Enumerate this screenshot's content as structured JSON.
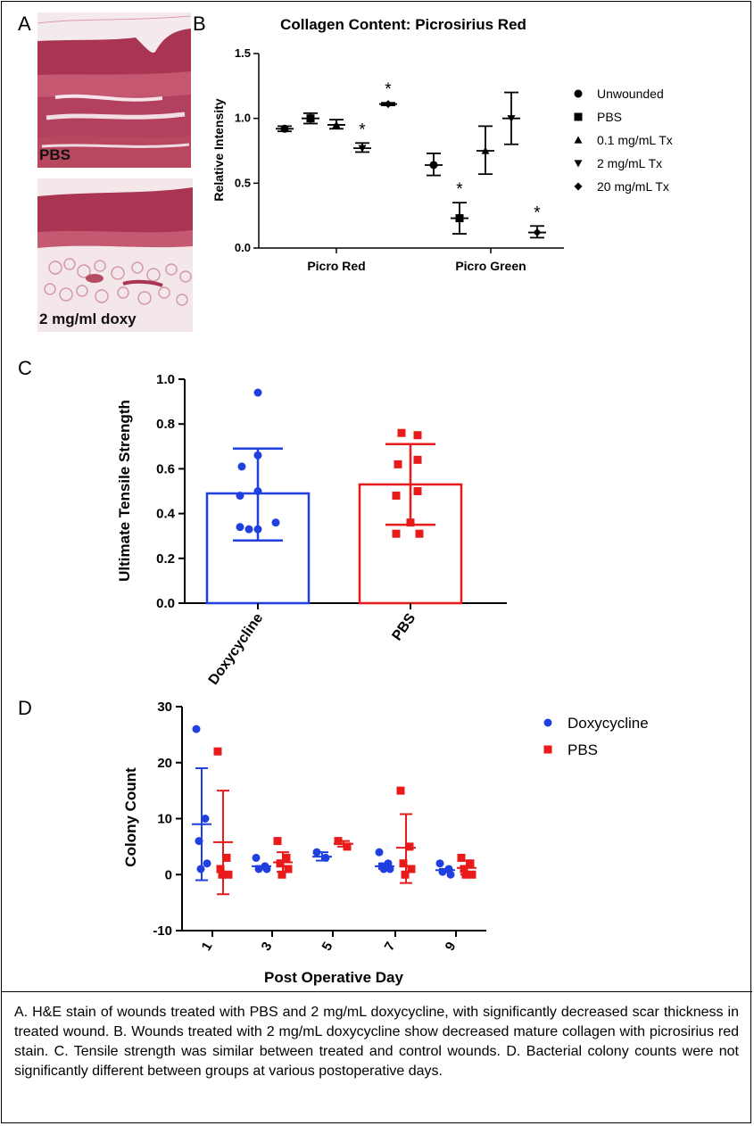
{
  "panels": {
    "a": {
      "letter": "A",
      "images": [
        {
          "label": "PBS"
        },
        {
          "label": "2 mg/ml doxy"
        }
      ]
    },
    "b_letter": "B",
    "c_letter": "C",
    "d_letter": "D"
  },
  "caption": "A. H&E stain of wounds treated with PBS and 2 mg/mL doxycycline, with significantly decreased scar thickness in treated wound. B. Wounds treated with 2 mg/mL doxycycline show decreased mature collagen with picrosirius red stain. C. Tensile strength was similar between treated and control wounds. D. Bacterial colony counts were not significantly different between groups at various postoperative days.",
  "colors": {
    "blue": "#1f3fe0",
    "red": "#e81a1a",
    "tissue_pink": "#e8b8c4",
    "tissue_dark": "#9c2f4a"
  },
  "chart_data": [
    {
      "id": "B",
      "type": "scatter",
      "title": "Collagen Content: Picrosirius Red",
      "ylabel": "Relative Intensity",
      "xlabel": "",
      "ylim": [
        0,
        1.5
      ],
      "yticks": [
        "0.0",
        "0.5",
        "1.0",
        "1.5"
      ],
      "categories": [
        "Picro Red",
        "Picro Green"
      ],
      "legend_position": "right",
      "series": [
        {
          "name": "Unwounded",
          "marker": "circle",
          "points": [
            {
              "cat": 0,
              "mean": 0.92,
              "lo": 0.9,
              "hi": 0.94,
              "star": false
            },
            {
              "cat": 1,
              "mean": 0.64,
              "lo": 0.56,
              "hi": 0.73,
              "star": false
            }
          ]
        },
        {
          "name": "PBS",
          "marker": "square",
          "points": [
            {
              "cat": 0,
              "mean": 1.0,
              "lo": 0.96,
              "hi": 1.04,
              "star": false
            },
            {
              "cat": 1,
              "mean": 0.23,
              "lo": 0.11,
              "hi": 0.35,
              "star": true
            }
          ]
        },
        {
          "name": "0.1 mg/mL Tx",
          "marker": "triangle-up",
          "points": [
            {
              "cat": 0,
              "mean": 0.95,
              "lo": 0.92,
              "hi": 0.99,
              "star": false
            },
            {
              "cat": 1,
              "mean": 0.75,
              "lo": 0.57,
              "hi": 0.94,
              "star": false
            }
          ]
        },
        {
          "name": "2 mg/mL Tx",
          "marker": "triangle-down",
          "points": [
            {
              "cat": 0,
              "mean": 0.77,
              "lo": 0.74,
              "hi": 0.81,
              "star": true
            },
            {
              "cat": 1,
              "mean": 1.0,
              "lo": 0.8,
              "hi": 1.2,
              "star": false
            }
          ]
        },
        {
          "name": "20 mg/mL Tx",
          "marker": "diamond",
          "points": [
            {
              "cat": 0,
              "mean": 1.11,
              "lo": 1.1,
              "hi": 1.12,
              "star": true
            },
            {
              "cat": 1,
              "mean": 0.12,
              "lo": 0.08,
              "hi": 0.17,
              "star": true
            }
          ]
        }
      ]
    },
    {
      "id": "C",
      "type": "bar",
      "ylabel": "Ultimate Tensile Strength",
      "xlabel": "",
      "ylim": [
        0,
        1.0
      ],
      "yticks": [
        "0.0",
        "0.2",
        "0.4",
        "0.6",
        "0.8",
        "1.0"
      ],
      "categories": [
        "Doxycycline",
        "PBS"
      ],
      "series": [
        {
          "name": "Doxycycline",
          "color": "#1f3fe0",
          "marker": "circle",
          "mean": 0.49,
          "sd_lo": 0.28,
          "sd_hi": 0.69,
          "points": [
            0.94,
            0.66,
            0.61,
            0.5,
            0.48,
            0.36,
            0.34,
            0.33,
            0.33
          ]
        },
        {
          "name": "PBS",
          "color": "#e81a1a",
          "marker": "square",
          "mean": 0.53,
          "sd_lo": 0.35,
          "sd_hi": 0.71,
          "points": [
            0.76,
            0.75,
            0.64,
            0.62,
            0.5,
            0.48,
            0.36,
            0.31,
            0.31
          ]
        }
      ]
    },
    {
      "id": "D",
      "type": "scatter",
      "ylabel": "Colony Count",
      "xlabel": "Post Operative Day",
      "ylim": [
        -10,
        30
      ],
      "yticks": [
        "-10",
        "0",
        "10",
        "20",
        "30"
      ],
      "categories": [
        "1",
        "3",
        "5",
        "7",
        "9"
      ],
      "legend_position": "top-right",
      "series": [
        {
          "name": "Doxycycline",
          "color": "#1f3fe0",
          "marker": "circle",
          "groups": [
            {
              "mean": 9,
              "lo": -1,
              "hi": 19,
              "points": [
                26,
                10,
                6,
                2,
                1
              ]
            },
            {
              "mean": 1.5,
              "lo": 1.5,
              "hi": 1.5,
              "points": [
                3,
                1.5,
                1,
                1
              ]
            },
            {
              "mean": 3.2,
              "lo": 2.5,
              "hi": 4,
              "points": [
                4,
                3
              ]
            },
            {
              "mean": 1.5,
              "lo": 1,
              "hi": 2,
              "points": [
                4,
                2,
                1.5,
                1,
                1
              ]
            },
            {
              "mean": 0.8,
              "lo": 0.5,
              "hi": 1,
              "points": [
                2,
                1,
                0.5,
                0
              ]
            }
          ]
        },
        {
          "name": "PBS",
          "color": "#e81a1a",
          "marker": "square",
          "groups": [
            {
              "mean": 5.8,
              "lo": -3.5,
              "hi": 15,
              "points": [
                22,
                3,
                1,
                0,
                0
              ]
            },
            {
              "mean": 2.2,
              "lo": 0.5,
              "hi": 4,
              "points": [
                6,
                3,
                2,
                1,
                0
              ]
            },
            {
              "mean": 5.5,
              "lo": 5,
              "hi": 6,
              "points": [
                6,
                5
              ]
            },
            {
              "mean": 4.8,
              "lo": -1.5,
              "hi": 10.8,
              "points": [
                15,
                5,
                2,
                1,
                0
              ]
            },
            {
              "mean": 1.2,
              "lo": 0,
              "hi": 2.5,
              "points": [
                3,
                2,
                1,
                0,
                0
              ]
            }
          ]
        }
      ]
    }
  ]
}
